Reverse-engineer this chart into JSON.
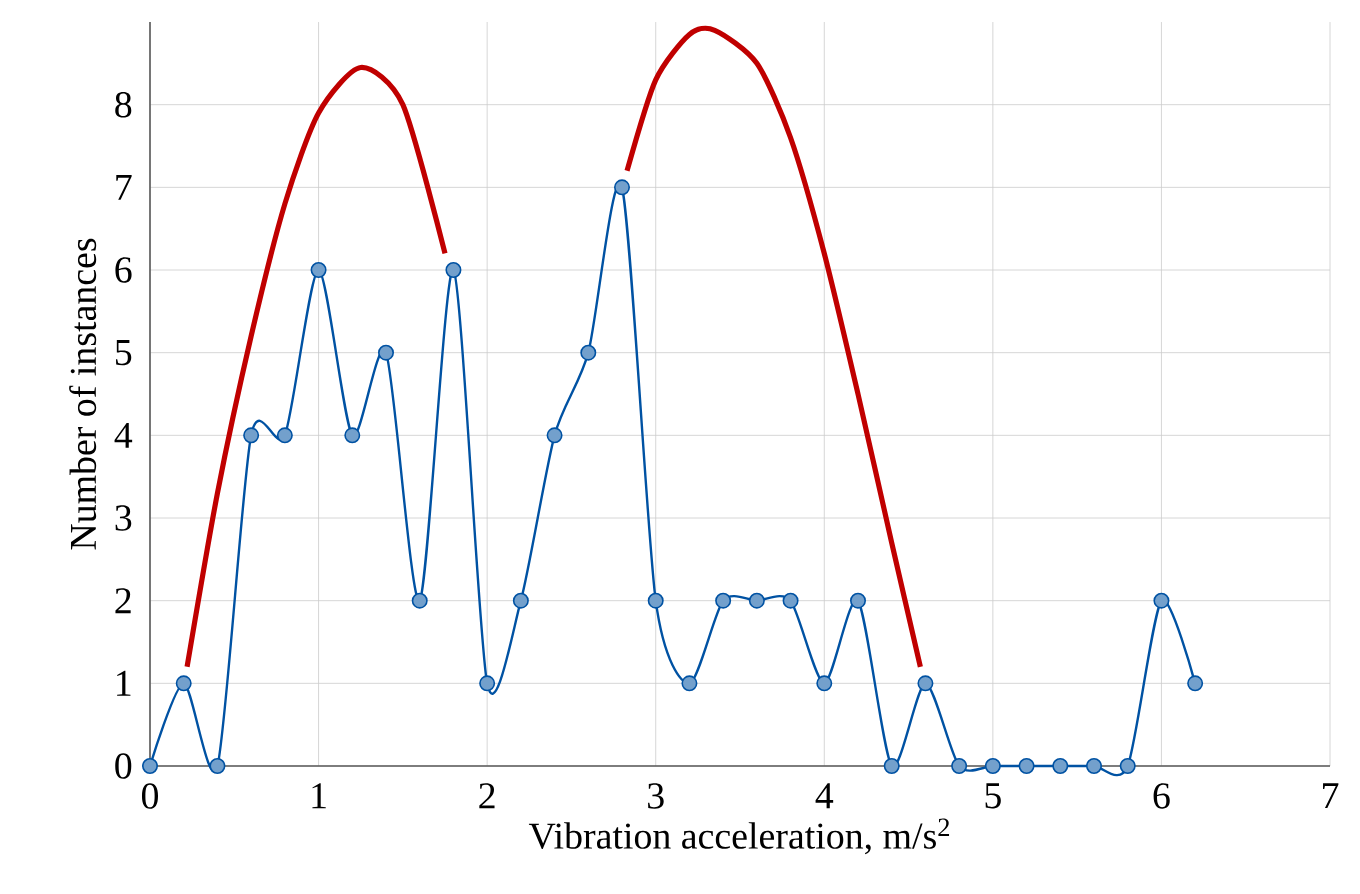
{
  "chart_data": {
    "type": "line",
    "xlabel": "Vibration acceleration, m/s$^{2}$",
    "ylabel": "Number of instances",
    "xlim": [
      0,
      7
    ],
    "xticks": [
      0,
      1,
      2,
      3,
      4,
      5,
      6,
      7
    ],
    "ylim": [
      0,
      9
    ],
    "yticks": [
      0,
      1,
      2,
      3,
      4,
      5,
      6,
      7,
      8
    ],
    "grid": true,
    "series": [
      {
        "color": "#0052a3",
        "marker": "circle",
        "x": [
          0,
          0.2,
          0.4,
          0.6,
          0.8,
          1.0,
          1.2,
          1.4,
          1.6,
          1.8,
          2.0,
          2.2,
          2.4,
          2.6,
          2.8,
          3.0,
          3.2,
          3.4,
          3.6,
          3.8,
          4.0,
          4.2,
          4.4,
          4.6,
          4.8,
          5.0,
          5.2,
          5.4,
          5.6,
          5.8,
          6.0,
          6.2
        ],
        "values": [
          0,
          1,
          0,
          4,
          4,
          6,
          4,
          5,
          2,
          6,
          1,
          2,
          4,
          5,
          7,
          2,
          1,
          2,
          2,
          2,
          1,
          2,
          0,
          1,
          0,
          0,
          0,
          0,
          0,
          0,
          2,
          1
        ]
      },
      {
        "color": "#c00000",
        "marker": "none",
        "x": [
          0.22,
          0.4,
          0.6,
          0.8,
          1.0,
          1.25,
          1.5,
          1.75
        ],
        "values": [
          1.2,
          3.3,
          5.2,
          6.8,
          7.9,
          8.45,
          8.0,
          6.2
        ]
      },
      {
        "color": "#c00000",
        "marker": "none",
        "x": [
          2.83,
          3.0,
          3.2,
          3.35,
          3.6,
          3.8,
          4.0,
          4.2,
          4.4,
          4.57
        ],
        "values": [
          7.2,
          8.3,
          8.85,
          8.9,
          8.5,
          7.6,
          6.2,
          4.5,
          2.7,
          1.2
        ]
      }
    ]
  }
}
